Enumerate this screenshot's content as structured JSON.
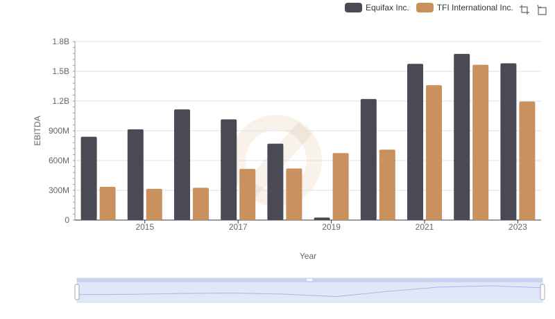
{
  "legend": {
    "items": [
      {
        "label": "Equifax Inc.",
        "color": "#4a4a55"
      },
      {
        "label": "TFI International Inc.",
        "color": "#c9915d"
      }
    ]
  },
  "toolbox": {
    "icons": [
      "zoom-icon",
      "zoom-reset-icon"
    ]
  },
  "chart_data": {
    "type": "bar",
    "categories": [
      "2014",
      "2015",
      "2016",
      "2017",
      "2018",
      "2019",
      "2020",
      "2021",
      "2022",
      "2023"
    ],
    "x_tick_labels": [
      "2015",
      "2017",
      "2019",
      "2021",
      "2023"
    ],
    "xlabel": "Year",
    "ylabel": "EBITDA",
    "ylim": [
      0,
      1800000000
    ],
    "y_tick_labels": [
      "0",
      "300M",
      "600M",
      "900M",
      "1.2B",
      "1.5B",
      "1.8B"
    ],
    "grid": true,
    "legend_position": "top-right",
    "series": [
      {
        "name": "Equifax Inc.",
        "color": "#4a4a55",
        "values": [
          840000000,
          915000000,
          1115000000,
          1015000000,
          770000000,
          25000000,
          1220000000,
          1575000000,
          1675000000,
          1580000000
        ]
      },
      {
        "name": "TFI International Inc.",
        "color": "#c9915d",
        "values": [
          335000000,
          315000000,
          325000000,
          515000000,
          520000000,
          675000000,
          710000000,
          1360000000,
          1565000000,
          1195000000
        ]
      }
    ],
    "datazoom": {
      "start_fraction": 0,
      "end_fraction": 1
    }
  }
}
